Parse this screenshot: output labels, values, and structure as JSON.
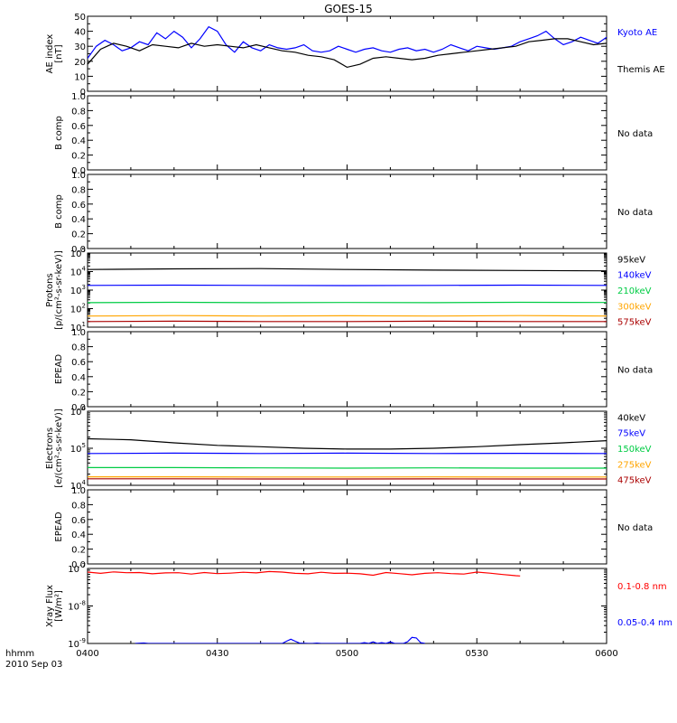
{
  "title": "GOES-15",
  "time_label": "hhmm",
  "date_label": "2010 Sep 03",
  "x_ticks": [
    "0400",
    "0430",
    "0500",
    "0530",
    "0600"
  ],
  "chart_data": [
    {
      "type": "line",
      "panel": "ae",
      "ylabel": [
        "AE index",
        "[nT]"
      ],
      "ylim": [
        0,
        50
      ],
      "yscale": "linear",
      "yticks": [
        "0",
        "10",
        "20",
        "30",
        "40",
        "50"
      ],
      "xlim_minutes": [
        0,
        120
      ],
      "legend_placement": "right",
      "series": [
        {
          "name": "Kyoto AE",
          "color": "#0000ff",
          "x": [
            0,
            2,
            4,
            6,
            8,
            10,
            12,
            14,
            16,
            18,
            20,
            22,
            24,
            26,
            28,
            30,
            32,
            34,
            36,
            38,
            40,
            42,
            44,
            46,
            48,
            50,
            52,
            54,
            56,
            58,
            60,
            62,
            64,
            66,
            68,
            70,
            72,
            74,
            76,
            78,
            80,
            82,
            84,
            86,
            88,
            90,
            92,
            94,
            96,
            98,
            100,
            102,
            104,
            106,
            108,
            110,
            112,
            114,
            116,
            118,
            120
          ],
          "y": [
            22,
            30,
            34,
            31,
            27,
            29,
            33,
            31,
            39,
            35,
            40,
            36,
            29,
            35,
            43,
            40,
            31,
            26,
            33,
            29,
            27,
            31,
            29,
            28,
            29,
            31,
            27,
            26,
            27,
            30,
            28,
            26,
            28,
            29,
            27,
            26,
            28,
            29,
            27,
            28,
            26,
            28,
            31,
            29,
            27,
            30,
            29,
            28,
            29,
            30,
            33,
            35,
            37,
            40,
            35,
            31,
            33,
            36,
            34,
            32,
            36
          ]
        },
        {
          "name": "Themis AE",
          "color": "#000000",
          "x": [
            0,
            3,
            6,
            9,
            12,
            15,
            18,
            21,
            24,
            27,
            30,
            33,
            36,
            39,
            42,
            45,
            48,
            51,
            54,
            57,
            60,
            63,
            66,
            69,
            72,
            75,
            78,
            81,
            84,
            87,
            90,
            93,
            96,
            99,
            102,
            105,
            108,
            111,
            114,
            117,
            120
          ],
          "y": [
            18,
            28,
            32,
            30,
            27,
            31,
            30,
            29,
            32,
            30,
            31,
            30,
            29,
            31,
            29,
            27,
            26,
            24,
            23,
            21,
            16,
            18,
            22,
            23,
            22,
            21,
            22,
            24,
            25,
            26,
            27,
            28,
            29,
            30,
            33,
            34,
            35,
            35,
            33,
            31,
            32
          ]
        }
      ]
    },
    {
      "type": "line",
      "panel": "b1",
      "ylabel": [
        "B comp"
      ],
      "ylim": [
        0,
        1
      ],
      "yscale": "linear",
      "yticks": [
        "0.0",
        "0.2",
        "0.4",
        "0.6",
        "0.8",
        "1.0"
      ],
      "status": "No data",
      "series": []
    },
    {
      "type": "line",
      "panel": "b2",
      "ylabel": [
        "B comp"
      ],
      "ylim": [
        0,
        1
      ],
      "yscale": "linear",
      "yticks": [
        "0.0",
        "0.2",
        "0.4",
        "0.6",
        "0.8",
        "1.0"
      ],
      "status": "No data",
      "series": []
    },
    {
      "type": "line",
      "panel": "protons",
      "ylabel": [
        "Protons",
        "[p/(cm²-s-sr-keV)]"
      ],
      "ylim": [
        10,
        100000
      ],
      "yscale": "log",
      "ytick_exponents": [
        "1",
        "2",
        "3",
        "4",
        "5"
      ],
      "legend_placement": "right",
      "series": [
        {
          "name": "575keV",
          "color": "#aa0000",
          "x": [
            0,
            20,
            40,
            60,
            80,
            100,
            120
          ],
          "y": [
            20,
            21,
            20,
            20,
            21,
            20,
            20
          ]
        },
        {
          "name": "300keV",
          "color": "#ffa500",
          "x": [
            0,
            20,
            40,
            60,
            80,
            100,
            120
          ],
          "y": [
            40,
            42,
            40,
            41,
            40,
            42,
            40
          ]
        },
        {
          "name": "210keV",
          "color": "#00cc44",
          "x": [
            0,
            20,
            40,
            60,
            80,
            100,
            120
          ],
          "y": [
            210,
            220,
            210,
            215,
            210,
            220,
            215
          ]
        },
        {
          "name": "140keV",
          "color": "#0000ff",
          "x": [
            0,
            20,
            40,
            60,
            80,
            100,
            120
          ],
          "y": [
            1800,
            1850,
            1800,
            1750,
            1800,
            1850,
            1800
          ]
        },
        {
          "name": "95keV",
          "color": "#000000",
          "x": [
            0,
            20,
            40,
            60,
            80,
            100,
            120
          ],
          "y": [
            13000,
            14000,
            14500,
            13000,
            12000,
            11500,
            11000
          ]
        }
      ]
    },
    {
      "type": "line",
      "panel": "epead1",
      "ylabel": [
        "EPEAD"
      ],
      "ylim": [
        0,
        1
      ],
      "yscale": "linear",
      "yticks": [
        "0.0",
        "0.2",
        "0.4",
        "0.6",
        "0.8",
        "1.0"
      ],
      "status": "No data",
      "series": []
    },
    {
      "type": "line",
      "panel": "electrons",
      "ylabel": [
        "Electrons",
        "[e/(cm²-s-sr-keV)]"
      ],
      "ylim": [
        10000,
        1000000
      ],
      "yscale": "log",
      "ytick_exponents": [
        "4",
        "5",
        "6"
      ],
      "legend_placement": "right",
      "series": [
        {
          "name": "475keV",
          "color": "#aa0000",
          "x": [
            0,
            20,
            40,
            60,
            80,
            100,
            120
          ],
          "y": [
            15000,
            15000,
            14800,
            14800,
            14900,
            14800,
            14800
          ]
        },
        {
          "name": "275keV",
          "color": "#ffa500",
          "x": [
            0,
            20,
            40,
            60,
            80,
            100,
            120
          ],
          "y": [
            17000,
            17000,
            16800,
            16800,
            16900,
            16800,
            16800
          ]
        },
        {
          "name": "150keV",
          "color": "#00cc44",
          "x": [
            0,
            20,
            40,
            60,
            80,
            100,
            120
          ],
          "y": [
            30000,
            30000,
            29500,
            29000,
            29500,
            29000,
            29000
          ]
        },
        {
          "name": "75keV",
          "color": "#0000ff",
          "x": [
            0,
            20,
            40,
            60,
            80,
            100,
            120
          ],
          "y": [
            72000,
            74000,
            72000,
            74000,
            72000,
            73000,
            72000
          ]
        },
        {
          "name": "40keV",
          "color": "#000000",
          "x": [
            0,
            10,
            20,
            30,
            40,
            50,
            60,
            70,
            80,
            90,
            100,
            110,
            120
          ],
          "y": [
            180000,
            170000,
            140000,
            120000,
            110000,
            100000,
            95000,
            95000,
            100000,
            110000,
            125000,
            140000,
            160000
          ]
        }
      ]
    },
    {
      "type": "line",
      "panel": "epead2",
      "ylabel": [
        "EPEAD"
      ],
      "ylim": [
        0,
        1
      ],
      "yscale": "linear",
      "yticks": [
        "0.0",
        "0.2",
        "0.4",
        "0.6",
        "0.8",
        "1.0"
      ],
      "status": "No data",
      "series": []
    },
    {
      "type": "line",
      "panel": "xray",
      "ylabel": [
        "Xray Flux",
        "[W/m²]"
      ],
      "ylim": [
        1e-09,
        1e-07
      ],
      "yscale": "log",
      "ytick_exponents": [
        "-9",
        "-8",
        "-7"
      ],
      "legend_placement": "right",
      "series": [
        {
          "name": "0.1-0.8 nm",
          "color": "#ff0000",
          "x": [
            0,
            3,
            6,
            9,
            12,
            15,
            18,
            21,
            24,
            27,
            30,
            33,
            36,
            39,
            42,
            45,
            48,
            51,
            54,
            57,
            60,
            63,
            66,
            69,
            72,
            75,
            78,
            81,
            84,
            87,
            90,
            93,
            96,
            99,
            100
          ],
          "y": [
            8e-08,
            7.4e-08,
            8.1e-08,
            7.7e-08,
            7.8e-08,
            7.2e-08,
            7.6e-08,
            7.7e-08,
            7.1e-08,
            7.8e-08,
            7.3e-08,
            7.5e-08,
            7.9e-08,
            7.6e-08,
            8.3e-08,
            8e-08,
            7.4e-08,
            7.2e-08,
            7.9e-08,
            7.4e-08,
            7.5e-08,
            7.2e-08,
            6.6e-08,
            7.8e-08,
            7.3e-08,
            6.8e-08,
            7.4e-08,
            7.7e-08,
            7.3e-08,
            7.1e-08,
            8e-08,
            7.5e-08,
            6.9e-08,
            6.4e-08,
            6.3e-08
          ]
        },
        {
          "name": "0.05-0.4 nm",
          "color": "#0000ff",
          "x": [
            11,
            13,
            14,
            16,
            28,
            29,
            45,
            46,
            47,
            48,
            49,
            51,
            52,
            53,
            54,
            56,
            58,
            63,
            64,
            65,
            66,
            67,
            68,
            69,
            70,
            71,
            72,
            73,
            74,
            75,
            76,
            77,
            78
          ],
          "y": [
            1e-09,
            1.03e-09,
            1e-09,
            1e-09,
            1e-09,
            1e-09,
            1e-09,
            1.15e-09,
            1.3e-09,
            1.15e-09,
            1.02e-09,
            1e-09,
            1e-09,
            1.02e-09,
            1e-09,
            1e-09,
            1e-09,
            1e-09,
            1.05e-09,
            1e-09,
            1.1e-09,
            1e-09,
            1.05e-09,
            1e-09,
            1.1e-09,
            1e-09,
            1e-09,
            1e-09,
            1.12e-09,
            1.45e-09,
            1.4e-09,
            1.05e-09,
            1e-09
          ]
        }
      ]
    }
  ]
}
